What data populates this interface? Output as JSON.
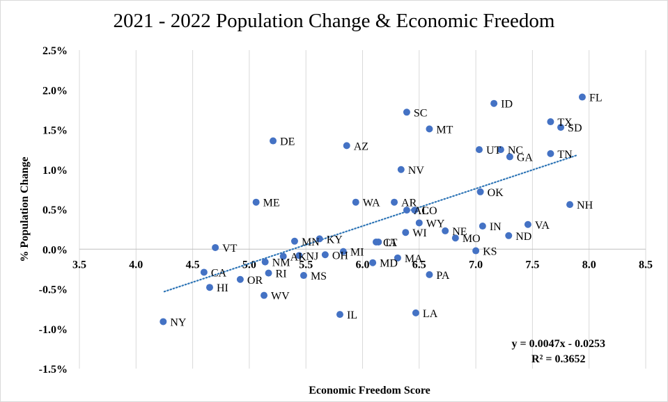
{
  "chart_data": {
    "type": "scatter",
    "title": "2021 - 2022 Population Change & Economic Freedom",
    "xlabel": "Economic Freedom Score",
    "ylabel": "% Population Change",
    "xlim": [
      3.5,
      8.5
    ],
    "ylim": [
      -1.5,
      2.5
    ],
    "x_ticks": [
      "3.5",
      "4.0",
      "4.5",
      "5.0",
      "5.5",
      "6.0",
      "6.5",
      "7.0",
      "7.5",
      "8.0",
      "8.5"
    ],
    "y_ticks": [
      "2.5%",
      "2.0%",
      "1.5%",
      "1.0%",
      "0.5%",
      "0.0%",
      "-0.5%",
      "-1.0%",
      "-1.5%"
    ],
    "grid": "vertical",
    "point_color": "#4472C4",
    "trendline": {
      "type": "linear",
      "color": "#2E75B6",
      "x_range": [
        4.25,
        7.9
      ],
      "slope": 0.47,
      "intercept": -2.53
    },
    "equation": "y = 0.0047x - 0.0253",
    "r_squared": "R² = 0.3652",
    "points": [
      {
        "label": "FL",
        "x": 7.94,
        "y": 1.91
      },
      {
        "label": "ID",
        "x": 7.16,
        "y": 1.83
      },
      {
        "label": "SC",
        "x": 6.39,
        "y": 1.72
      },
      {
        "label": "TX",
        "x": 7.66,
        "y": 1.6
      },
      {
        "label": "SD",
        "x": 7.75,
        "y": 1.53
      },
      {
        "label": "MT",
        "x": 6.59,
        "y": 1.51
      },
      {
        "label": "DE",
        "x": 5.21,
        "y": 1.36
      },
      {
        "label": "AZ",
        "x": 5.86,
        "y": 1.3
      },
      {
        "label": "UT",
        "x": 7.03,
        "y": 1.25
      },
      {
        "label": "NC",
        "x": 7.22,
        "y": 1.25
      },
      {
        "label": "TN",
        "x": 7.66,
        "y": 1.2
      },
      {
        "label": "GA",
        "x": 7.3,
        "y": 1.16
      },
      {
        "label": "NV",
        "x": 6.34,
        "y": 1.0
      },
      {
        "label": "OK",
        "x": 7.04,
        "y": 0.72
      },
      {
        "label": "ME",
        "x": 5.06,
        "y": 0.59
      },
      {
        "label": "WA",
        "x": 5.94,
        "y": 0.59
      },
      {
        "label": "AR",
        "x": 6.28,
        "y": 0.59
      },
      {
        "label": "NH",
        "x": 7.83,
        "y": 0.56
      },
      {
        "label": "AL",
        "x": 6.39,
        "y": 0.49
      },
      {
        "label": "CO",
        "x": 6.46,
        "y": 0.49
      },
      {
        "label": "WY",
        "x": 6.5,
        "y": 0.33
      },
      {
        "label": "VA",
        "x": 7.46,
        "y": 0.31
      },
      {
        "label": "IN",
        "x": 7.06,
        "y": 0.29
      },
      {
        "label": "NE",
        "x": 6.73,
        "y": 0.23
      },
      {
        "label": "WI",
        "x": 6.38,
        "y": 0.21
      },
      {
        "label": "ND",
        "x": 7.29,
        "y": 0.17
      },
      {
        "label": "MO",
        "x": 6.82,
        "y": 0.14
      },
      {
        "label": "KY",
        "x": 5.62,
        "y": 0.13
      },
      {
        "label": "MN",
        "x": 5.4,
        "y": 0.1
      },
      {
        "label": "CT",
        "x": 6.12,
        "y": 0.09
      },
      {
        "label": "IA",
        "x": 6.14,
        "y": 0.09
      },
      {
        "label": "VT",
        "x": 4.7,
        "y": 0.02
      },
      {
        "label": "KS",
        "x": 7.0,
        "y": -0.02
      },
      {
        "label": "MI",
        "x": 5.83,
        "y": -0.03
      },
      {
        "label": "OH",
        "x": 5.67,
        "y": -0.07
      },
      {
        "label": "NJ",
        "x": 5.44,
        "y": -0.08
      },
      {
        "label": "AK",
        "x": 5.3,
        "y": -0.09
      },
      {
        "label": "MA",
        "x": 6.31,
        "y": -0.11
      },
      {
        "label": "NM",
        "x": 5.14,
        "y": -0.16
      },
      {
        "label": "MD",
        "x": 6.09,
        "y": -0.17
      },
      {
        "label": "CA",
        "x": 4.6,
        "y": -0.29
      },
      {
        "label": "RI",
        "x": 5.17,
        "y": -0.3
      },
      {
        "label": "PA",
        "x": 6.59,
        "y": -0.32
      },
      {
        "label": "MS",
        "x": 5.48,
        "y": -0.33
      },
      {
        "label": "OR",
        "x": 4.92,
        "y": -0.38
      },
      {
        "label": "HI",
        "x": 4.65,
        "y": -0.48
      },
      {
        "label": "WV",
        "x": 5.13,
        "y": -0.58
      },
      {
        "label": "LA",
        "x": 6.47,
        "y": -0.8
      },
      {
        "label": "IL",
        "x": 5.8,
        "y": -0.82
      },
      {
        "label": "NY",
        "x": 4.24,
        "y": -0.91
      }
    ]
  }
}
